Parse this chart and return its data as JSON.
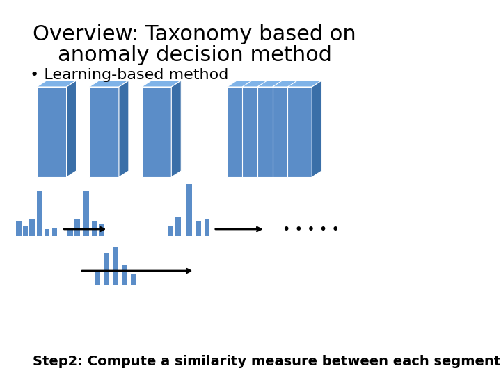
{
  "title_line1": "Overview: Taxonomy based on",
  "title_line2": "anomaly decision method",
  "bullet_text": "• Learning-based method",
  "step_text": "Step2: Compute a similarity measure between each segment",
  "dots_text": "• • • • •",
  "bg_color": "#ffffff",
  "box_color_front": "#5b8dc8",
  "box_color_top": "#7fb3e8",
  "box_color_side": "#3a6fa8",
  "bar_color": "#5b8dc8",
  "title_fontsize": 22,
  "bullet_fontsize": 16,
  "step_fontsize": 14
}
